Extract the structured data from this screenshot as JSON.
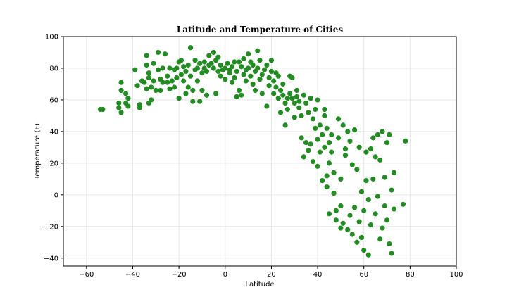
{
  "chart_data": {
    "type": "scatter",
    "title": "Latitude and Temperature of Cities",
    "xlabel": "Latitude",
    "ylabel": "Temperature (F)",
    "xlim": [
      -70,
      100
    ],
    "ylim": [
      -45,
      100
    ],
    "xticks": [
      -60,
      -40,
      -20,
      0,
      20,
      40,
      60,
      80,
      100
    ],
    "yticks": [
      -40,
      -20,
      0,
      20,
      40,
      60,
      80,
      100
    ],
    "grid": true,
    "marker_color": "#228b22",
    "points": [
      [
        -54,
        54
      ],
      [
        -53,
        54
      ],
      [
        -46,
        58
      ],
      [
        -46,
        55
      ],
      [
        -45,
        52
      ],
      [
        -45,
        71
      ],
      [
        -45,
        66
      ],
      [
        -43,
        64
      ],
      [
        -43,
        58
      ],
      [
        -42,
        56
      ],
      [
        -42,
        61
      ],
      [
        -39,
        79
      ],
      [
        -38,
        69
      ],
      [
        -37,
        57
      ],
      [
        -37,
        55
      ],
      [
        -36,
        72
      ],
      [
        -35,
        71
      ],
      [
        -34,
        67
      ],
      [
        -34,
        82
      ],
      [
        -34,
        88
      ],
      [
        -33,
        77
      ],
      [
        -33,
        74
      ],
      [
        -33,
        58
      ],
      [
        -32,
        60
      ],
      [
        -32,
        68
      ],
      [
        -31,
        83
      ],
      [
        -31,
        72
      ],
      [
        -30,
        66
      ],
      [
        -29,
        90
      ],
      [
        -29,
        79
      ],
      [
        -28,
        73
      ],
      [
        -28,
        66
      ],
      [
        -27,
        80
      ],
      [
        -27,
        71
      ],
      [
        -26,
        89
      ],
      [
        -25,
        75
      ],
      [
        -25,
        71
      ],
      [
        -24,
        67
      ],
      [
        -24,
        80
      ],
      [
        -23,
        72
      ],
      [
        -22,
        68
      ],
      [
        -22,
        79
      ],
      [
        -21,
        80
      ],
      [
        -21,
        74
      ],
      [
        -20,
        84
      ],
      [
        -20,
        61
      ],
      [
        -19,
        85
      ],
      [
        -19,
        76
      ],
      [
        -18,
        81
      ],
      [
        -18,
        72
      ],
      [
        -17,
        64
      ],
      [
        -17,
        78
      ],
      [
        -16,
        82
      ],
      [
        -16,
        68
      ],
      [
        -15,
        93
      ],
      [
        -15,
        75
      ],
      [
        -14,
        66
      ],
      [
        -14,
        59
      ],
      [
        -13,
        85
      ],
      [
        -13,
        79
      ],
      [
        -12,
        72
      ],
      [
        -12,
        80
      ],
      [
        -11,
        59
      ],
      [
        -11,
        83
      ],
      [
        -10,
        77
      ],
      [
        -10,
        66
      ],
      [
        -9,
        84
      ],
      [
        -9,
        80
      ],
      [
        -8,
        63
      ],
      [
        -8,
        78
      ],
      [
        -7,
        88
      ],
      [
        -7,
        82
      ],
      [
        -6,
        83
      ],
      [
        -5,
        80
      ],
      [
        -5,
        90
      ],
      [
        -4,
        64
      ],
      [
        -4,
        85
      ],
      [
        -3,
        87
      ],
      [
        -3,
        78
      ],
      [
        -2,
        82
      ],
      [
        -2,
        75
      ],
      [
        -1,
        79
      ],
      [
        0,
        80
      ],
      [
        0,
        73
      ],
      [
        1,
        83
      ],
      [
        2,
        79
      ],
      [
        2,
        77
      ],
      [
        3,
        71
      ],
      [
        3,
        81
      ],
      [
        4,
        84
      ],
      [
        4,
        74
      ],
      [
        5,
        62
      ],
      [
        5,
        78
      ],
      [
        6,
        84
      ],
      [
        6,
        66
      ],
      [
        7,
        81
      ],
      [
        7,
        63
      ],
      [
        8,
        76
      ],
      [
        8,
        86
      ],
      [
        9,
        79
      ],
      [
        9,
        72
      ],
      [
        10,
        80
      ],
      [
        10,
        89
      ],
      [
        11,
        75
      ],
      [
        11,
        84
      ],
      [
        12,
        82
      ],
      [
        12,
        70
      ],
      [
        13,
        78
      ],
      [
        13,
        66
      ],
      [
        14,
        91
      ],
      [
        14,
        80
      ],
      [
        15,
        73
      ],
      [
        15,
        85
      ],
      [
        16,
        64
      ],
      [
        16,
        76
      ],
      [
        17,
        79
      ],
      [
        18,
        82
      ],
      [
        18,
        56
      ],
      [
        19,
        74
      ],
      [
        19,
        69
      ],
      [
        20,
        85
      ],
      [
        20,
        78
      ],
      [
        21,
        72
      ],
      [
        21,
        64
      ],
      [
        22,
        77
      ],
      [
        22,
        68
      ],
      [
        23,
        61
      ],
      [
        23,
        75
      ],
      [
        24,
        52
      ],
      [
        24,
        66
      ],
      [
        25,
        63
      ],
      [
        25,
        70
      ],
      [
        26,
        44
      ],
      [
        26,
        58
      ],
      [
        27,
        61
      ],
      [
        27,
        54
      ],
      [
        28,
        75
      ],
      [
        28,
        64
      ],
      [
        29,
        61
      ],
      [
        29,
        74
      ],
      [
        30,
        58
      ],
      [
        30,
        49
      ],
      [
        31,
        66
      ],
      [
        31,
        62
      ],
      [
        32,
        55
      ],
      [
        32,
        59
      ],
      [
        33,
        50
      ],
      [
        33,
        36
      ],
      [
        34,
        63
      ],
      [
        34,
        24
      ],
      [
        35,
        33
      ],
      [
        35,
        58
      ],
      [
        36,
        52
      ],
      [
        36,
        28
      ],
      [
        37,
        61
      ],
      [
        37,
        32
      ],
      [
        38,
        48
      ],
      [
        38,
        21
      ],
      [
        39,
        54
      ],
      [
        39,
        42
      ],
      [
        40,
        18
      ],
      [
        40,
        60
      ],
      [
        40,
        35
      ],
      [
        41,
        44
      ],
      [
        41,
        27
      ],
      [
        42,
        38
      ],
      [
        42,
        9
      ],
      [
        43,
        50
      ],
      [
        43,
        30
      ],
      [
        43,
        54
      ],
      [
        44,
        42
      ],
      [
        44,
        12
      ],
      [
        44,
        5
      ],
      [
        45,
        33
      ],
      [
        45,
        -12
      ],
      [
        45,
        20
      ],
      [
        46,
        38
      ],
      [
        46,
        27
      ],
      [
        47,
        14
      ],
      [
        47,
        1
      ],
      [
        48,
        -10
      ],
      [
        48,
        -16
      ],
      [
        49,
        48
      ],
      [
        49,
        36
      ],
      [
        50,
        10
      ],
      [
        50,
        -7
      ],
      [
        50,
        -21
      ],
      [
        51,
        44
      ],
      [
        51,
        -18
      ],
      [
        52,
        29
      ],
      [
        52,
        25
      ],
      [
        53,
        40
      ],
      [
        53,
        -22
      ],
      [
        54,
        34
      ],
      [
        54,
        -13
      ],
      [
        55,
        19
      ],
      [
        55,
        -25
      ],
      [
        56,
        41
      ],
      [
        56,
        -8
      ],
      [
        57,
        16
      ],
      [
        57,
        -30
      ],
      [
        58,
        30
      ],
      [
        58,
        -17
      ],
      [
        59,
        2
      ],
      [
        59,
        -27
      ],
      [
        60,
        -10
      ],
      [
        60,
        -35
      ],
      [
        61,
        27
      ],
      [
        61,
        9
      ],
      [
        62,
        -38
      ],
      [
        62,
        -3
      ],
      [
        63,
        29
      ],
      [
        63,
        -19
      ],
      [
        64,
        36
      ],
      [
        64,
        10
      ],
      [
        65,
        24
      ],
      [
        65,
        -12
      ],
      [
        66,
        38
      ],
      [
        66,
        -1
      ],
      [
        67,
        22
      ],
      [
        67,
        -28
      ],
      [
        68,
        40
      ],
      [
        68,
        -21
      ],
      [
        69,
        11
      ],
      [
        69,
        -7
      ],
      [
        70,
        33
      ],
      [
        70,
        -16
      ],
      [
        71,
        38
      ],
      [
        71,
        -31
      ],
      [
        72,
        -37
      ],
      [
        72,
        3
      ],
      [
        73,
        -9
      ],
      [
        73,
        14
      ],
      [
        77,
        -6
      ],
      [
        78,
        34
      ]
    ]
  }
}
